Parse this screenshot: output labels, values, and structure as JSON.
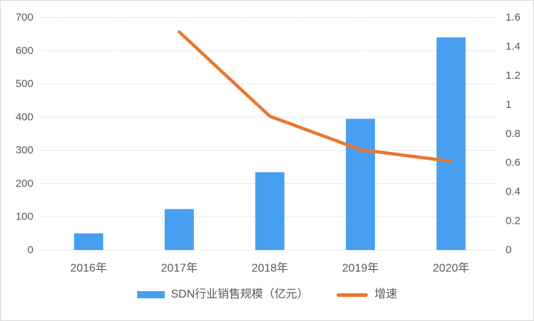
{
  "chart_data": {
    "type": "bar",
    "subtype": "combo-bar-line",
    "title": "",
    "categories": [
      "2016年",
      "2017年",
      "2018年",
      "2019年",
      "2020年"
    ],
    "series": [
      {
        "name": "SDN行业销售规模（亿元）",
        "type": "bar",
        "axis": "left",
        "values": [
          50,
          123,
          234,
          395,
          640
        ],
        "color": "#479ff1"
      },
      {
        "name": "增速",
        "type": "line",
        "axis": "right",
        "values": [
          null,
          1.5,
          0.92,
          0.69,
          0.61
        ],
        "color": "#e8772c"
      }
    ],
    "left_axis": {
      "min": 0,
      "max": 700,
      "step": 100,
      "tick_labels": [
        "0",
        "100",
        "200",
        "300",
        "400",
        "500",
        "600",
        "700"
      ]
    },
    "right_axis": {
      "min": 0,
      "max": 1.6,
      "step": 0.2,
      "tick_labels": [
        "0",
        "0.2",
        "0.4",
        "0.6",
        "0.8",
        "1",
        "1.2",
        "1.4",
        "1.6"
      ]
    },
    "grid": true,
    "gridline_color": "#d9d9d9",
    "axis_text_color": "#595959",
    "legend_position": "bottom"
  }
}
